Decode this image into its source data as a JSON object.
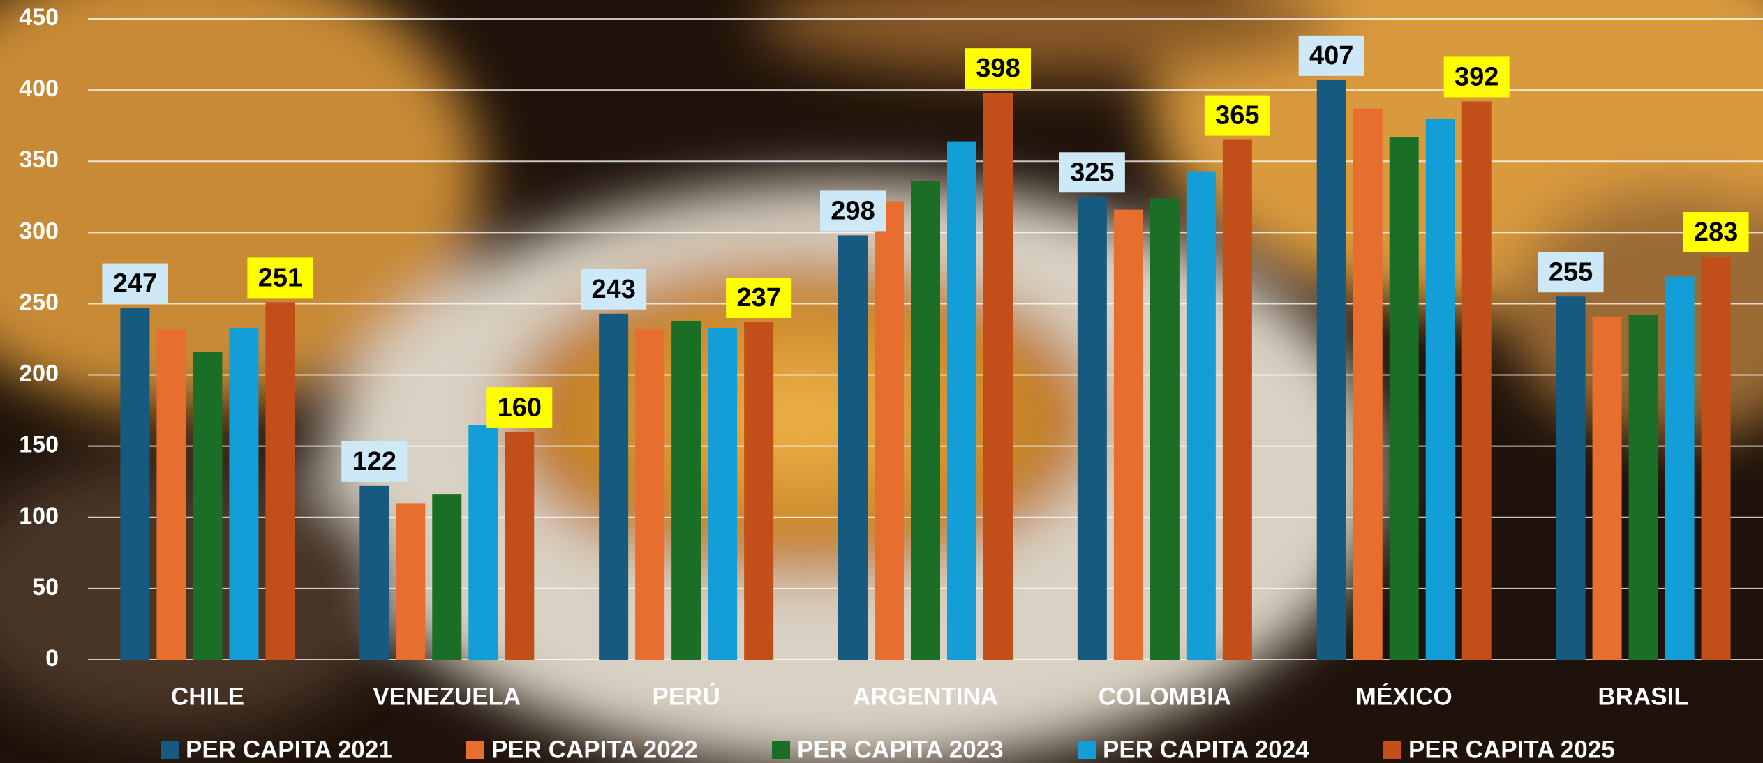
{
  "chart_data": {
    "type": "bar",
    "categories": [
      "CHILE",
      "VENEZUELA",
      "PERÚ",
      "ARGENTINA",
      "COLOMBIA",
      "MÉXICO",
      "BRASIL"
    ],
    "series": [
      {
        "name": "PER CAPITA 2021",
        "color": "#175a80",
        "values": [
          247,
          122,
          243,
          298,
          325,
          407,
          255
        ],
        "show_labels": true,
        "label_color": "#cde8f6"
      },
      {
        "name": "PER CAPITA 2022",
        "color": "#e86e30",
        "values": [
          232,
          110,
          232,
          322,
          316,
          387,
          241
        ],
        "show_labels": false
      },
      {
        "name": "PER CAPITA 2023",
        "color": "#1a6e25",
        "values": [
          216,
          116,
          238,
          336,
          324,
          367,
          242
        ],
        "show_labels": false
      },
      {
        "name": "PER CAPITA 2024",
        "color": "#139ed8",
        "values": [
          233,
          165,
          233,
          364,
          343,
          380,
          269
        ],
        "show_labels": false
      },
      {
        "name": "PER CAPITA 2025",
        "color": "#c24e19",
        "values": [
          251,
          160,
          237,
          398,
          365,
          392,
          283
        ],
        "show_labels": true,
        "label_color": "#ffff00"
      }
    ],
    "ylim": [
      0,
      450
    ],
    "yticks": [
      0,
      50,
      100,
      150,
      200,
      250,
      300,
      350,
      400,
      450
    ],
    "grid": true,
    "legend": "bottom"
  }
}
